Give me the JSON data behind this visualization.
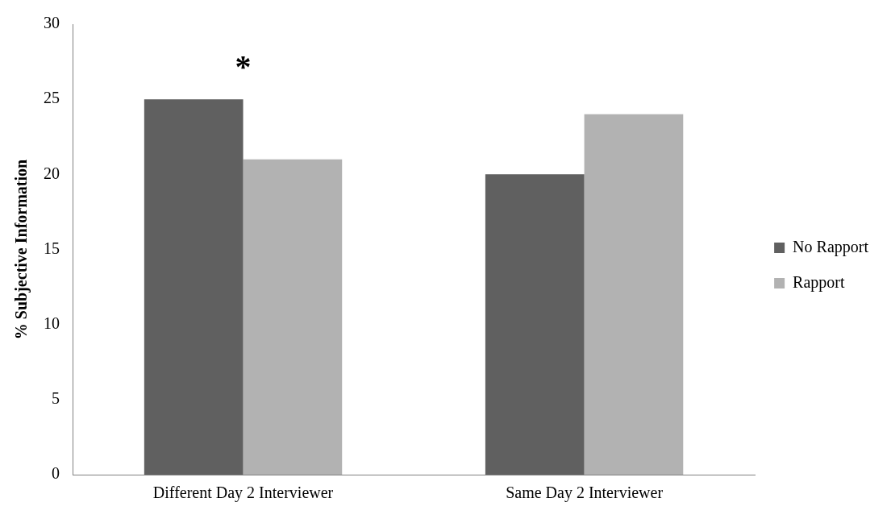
{
  "chart_data": {
    "type": "bar",
    "ylabel": "% Subjective Information",
    "categories": [
      "Different Day 2 Interviewer",
      "Same Day 2 Interviewer"
    ],
    "series": [
      {
        "name": "No Rapport",
        "color": "#606060",
        "values": [
          25,
          20
        ]
      },
      {
        "name": "Rapport",
        "color": "#b2b2b2",
        "values": [
          21,
          24
        ]
      }
    ],
    "ylim": [
      0,
      30
    ],
    "yticks": [
      0,
      5,
      10,
      15,
      20,
      25,
      30
    ],
    "grid": false,
    "legend": "right",
    "annotations": [
      "*"
    ]
  }
}
